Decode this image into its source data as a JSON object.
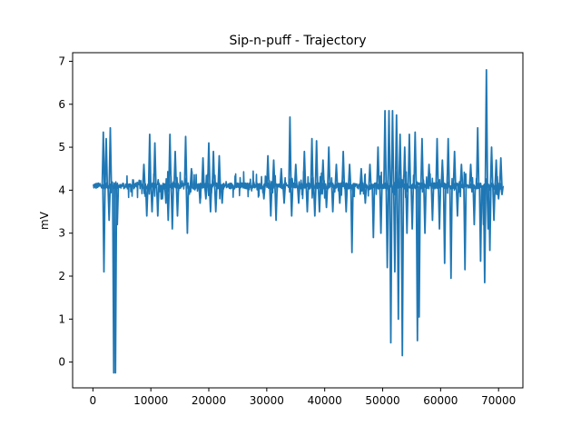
{
  "chart_data": {
    "type": "line",
    "title": "Sip-n-puff - Trajectory",
    "xlabel": "",
    "ylabel": "mV",
    "xlim": [
      -3500,
      74200
    ],
    "ylim": [
      -0.6,
      7.2
    ],
    "xticks": [
      0,
      10000,
      20000,
      30000,
      40000,
      50000,
      60000,
      70000
    ],
    "yticks": [
      0,
      1,
      2,
      3,
      4,
      5,
      6,
      7
    ],
    "grid": false,
    "color": "#1f77b4",
    "baseline": 4.1,
    "noise_band": [
      3.85,
      4.4
    ],
    "series": [
      {
        "name": "",
        "x_range": [
          0,
          70700
        ],
        "spikes": [
          {
            "x": 1800,
            "y": 5.35
          },
          {
            "x": 1900,
            "y": 2.1
          },
          {
            "x": 2300,
            "y": 5.2
          },
          {
            "x": 2800,
            "y": 3.3
          },
          {
            "x": 3000,
            "y": 5.45
          },
          {
            "x": 3600,
            "y": -0.25
          },
          {
            "x": 3900,
            "y": -0.25
          },
          {
            "x": 4200,
            "y": 3.2
          },
          {
            "x": 8800,
            "y": 4.6
          },
          {
            "x": 9300,
            "y": 3.4
          },
          {
            "x": 9800,
            "y": 5.3
          },
          {
            "x": 10200,
            "y": 3.5
          },
          {
            "x": 10700,
            "y": 5.1
          },
          {
            "x": 11200,
            "y": 3.4
          },
          {
            "x": 12000,
            "y": 3.8
          },
          {
            "x": 12600,
            "y": 3.7
          },
          {
            "x": 13000,
            "y": 3.3
          },
          {
            "x": 13300,
            "y": 5.3
          },
          {
            "x": 13700,
            "y": 3.1
          },
          {
            "x": 14200,
            "y": 4.9
          },
          {
            "x": 14600,
            "y": 3.4
          },
          {
            "x": 16000,
            "y": 5.25
          },
          {
            "x": 16300,
            "y": 3.0
          },
          {
            "x": 17000,
            "y": 4.5
          },
          {
            "x": 18500,
            "y": 3.7
          },
          {
            "x": 19000,
            "y": 4.75
          },
          {
            "x": 19500,
            "y": 3.8
          },
          {
            "x": 20000,
            "y": 5.1
          },
          {
            "x": 20300,
            "y": 3.5
          },
          {
            "x": 20800,
            "y": 4.9
          },
          {
            "x": 21200,
            "y": 3.5
          },
          {
            "x": 21800,
            "y": 4.8
          },
          {
            "x": 22300,
            "y": 3.7
          },
          {
            "x": 29500,
            "y": 3.8
          },
          {
            "x": 30200,
            "y": 4.8
          },
          {
            "x": 30700,
            "y": 3.4
          },
          {
            "x": 31200,
            "y": 4.7
          },
          {
            "x": 31600,
            "y": 3.3
          },
          {
            "x": 32500,
            "y": 4.5
          },
          {
            "x": 33000,
            "y": 3.7
          },
          {
            "x": 34000,
            "y": 5.7
          },
          {
            "x": 34300,
            "y": 3.4
          },
          {
            "x": 35000,
            "y": 4.6
          },
          {
            "x": 35500,
            "y": 3.7
          },
          {
            "x": 36500,
            "y": 4.9
          },
          {
            "x": 37000,
            "y": 3.5
          },
          {
            "x": 37800,
            "y": 5.2
          },
          {
            "x": 38300,
            "y": 3.4
          },
          {
            "x": 38600,
            "y": 5.15
          },
          {
            "x": 39100,
            "y": 3.5
          },
          {
            "x": 39700,
            "y": 4.7
          },
          {
            "x": 40300,
            "y": 3.6
          },
          {
            "x": 40700,
            "y": 5.0
          },
          {
            "x": 41400,
            "y": 3.5
          },
          {
            "x": 42000,
            "y": 4.6
          },
          {
            "x": 42600,
            "y": 3.7
          },
          {
            "x": 43200,
            "y": 4.9
          },
          {
            "x": 43700,
            "y": 3.5
          },
          {
            "x": 44300,
            "y": 4.6
          },
          {
            "x": 44700,
            "y": 2.55
          },
          {
            "x": 46300,
            "y": 4.5
          },
          {
            "x": 47000,
            "y": 3.7
          },
          {
            "x": 47800,
            "y": 4.6
          },
          {
            "x": 48400,
            "y": 2.9
          },
          {
            "x": 49200,
            "y": 5.0
          },
          {
            "x": 49700,
            "y": 3.0
          },
          {
            "x": 50400,
            "y": 5.85
          },
          {
            "x": 50800,
            "y": 2.2
          },
          {
            "x": 51100,
            "y": 5.85
          },
          {
            "x": 51400,
            "y": 0.45
          },
          {
            "x": 51700,
            "y": 5.85
          },
          {
            "x": 52100,
            "y": 2.1
          },
          {
            "x": 52400,
            "y": 5.75
          },
          {
            "x": 52700,
            "y": 1.0
          },
          {
            "x": 53000,
            "y": 5.3
          },
          {
            "x": 53400,
            "y": 0.15
          },
          {
            "x": 53800,
            "y": 5.0
          },
          {
            "x": 54200,
            "y": 3.0
          },
          {
            "x": 54600,
            "y": 5.3
          },
          {
            "x": 55100,
            "y": 3.1
          },
          {
            "x": 55600,
            "y": 5.35
          },
          {
            "x": 56000,
            "y": 0.5
          },
          {
            "x": 56300,
            "y": 1.05
          },
          {
            "x": 56800,
            "y": 5.2
          },
          {
            "x": 57300,
            "y": 3.0
          },
          {
            "x": 58000,
            "y": 4.6
          },
          {
            "x": 58600,
            "y": 3.3
          },
          {
            "x": 59400,
            "y": 5.2
          },
          {
            "x": 59800,
            "y": 3.1
          },
          {
            "x": 60300,
            "y": 4.7
          },
          {
            "x": 60700,
            "y": 2.3
          },
          {
            "x": 61300,
            "y": 5.2
          },
          {
            "x": 61800,
            "y": 1.95
          },
          {
            "x": 62400,
            "y": 4.9
          },
          {
            "x": 62900,
            "y": 3.4
          },
          {
            "x": 63600,
            "y": 4.6
          },
          {
            "x": 64200,
            "y": 2.15
          },
          {
            "x": 65200,
            "y": 4.6
          },
          {
            "x": 65800,
            "y": 3.2
          },
          {
            "x": 66400,
            "y": 5.45
          },
          {
            "x": 66900,
            "y": 2.35
          },
          {
            "x": 67400,
            "y": 3.2
          },
          {
            "x": 67600,
            "y": 1.85
          },
          {
            "x": 67900,
            "y": 6.8
          },
          {
            "x": 68200,
            "y": 3.1
          },
          {
            "x": 68500,
            "y": 2.6
          },
          {
            "x": 68800,
            "y": 5.0
          },
          {
            "x": 69200,
            "y": 3.3
          },
          {
            "x": 69600,
            "y": 4.7
          },
          {
            "x": 70000,
            "y": 3.8
          },
          {
            "x": 70400,
            "y": 4.75
          },
          {
            "x": 70600,
            "y": 3.9
          }
        ]
      }
    ]
  }
}
